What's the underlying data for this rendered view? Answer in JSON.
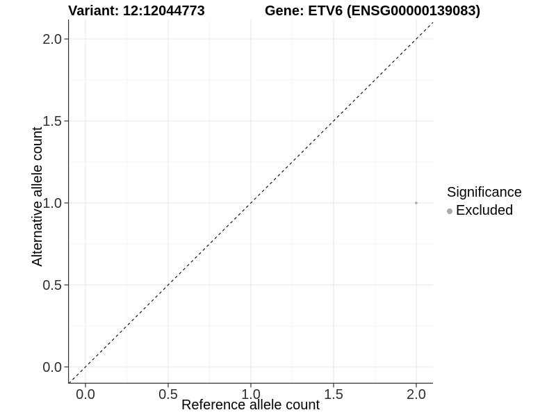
{
  "header": {
    "variant_title": "Variant: 12:12044773",
    "gene_title": "Gene: ETV6 (ENSG00000139083)"
  },
  "chart_data": {
    "type": "scatter",
    "xlabel": "Reference allele count",
    "ylabel": "Alternative allele count",
    "xlim": [
      -0.105,
      2.101
    ],
    "ylim": [
      -0.102,
      2.119
    ],
    "x_ticks": {
      "values": [
        0,
        0.5,
        1,
        1.5,
        2
      ],
      "labels": [
        "0.0",
        "0.5",
        "1.0",
        "1.5",
        "2.0"
      ]
    },
    "y_ticks": {
      "values": [
        0,
        0.5,
        1,
        1.5,
        2
      ],
      "labels": [
        "0.0",
        "0.5",
        "1.0",
        "1.5",
        "2.0"
      ]
    },
    "x_minor_ticks": [
      0.25,
      0.75,
      1.25,
      1.75
    ],
    "y_minor_ticks": [
      0.25,
      0.75,
      1.25,
      1.75
    ],
    "grid": "major+minor",
    "identity_line": {
      "slope": 1,
      "intercept": 0,
      "style": "dashed",
      "color": "#000000"
    },
    "series": [
      {
        "name": "Excluded",
        "color": "#aaaaaa",
        "point_radius": 1.8,
        "points": [
          {
            "x": 2.0,
            "y": 1.0
          }
        ]
      }
    ],
    "legend": {
      "title": "Significance",
      "position": "right",
      "items": [
        {
          "label": "Excluded",
          "color": "#aaaaaa"
        }
      ]
    },
    "colors": {
      "background": "#ffffff",
      "grid_major": "#e9e9e9",
      "grid_minor": "#f5f5f5",
      "axis_line": "#333333",
      "tick_mark": "#333333",
      "tick_label": "#2e2e2e",
      "text": "#000000"
    }
  }
}
